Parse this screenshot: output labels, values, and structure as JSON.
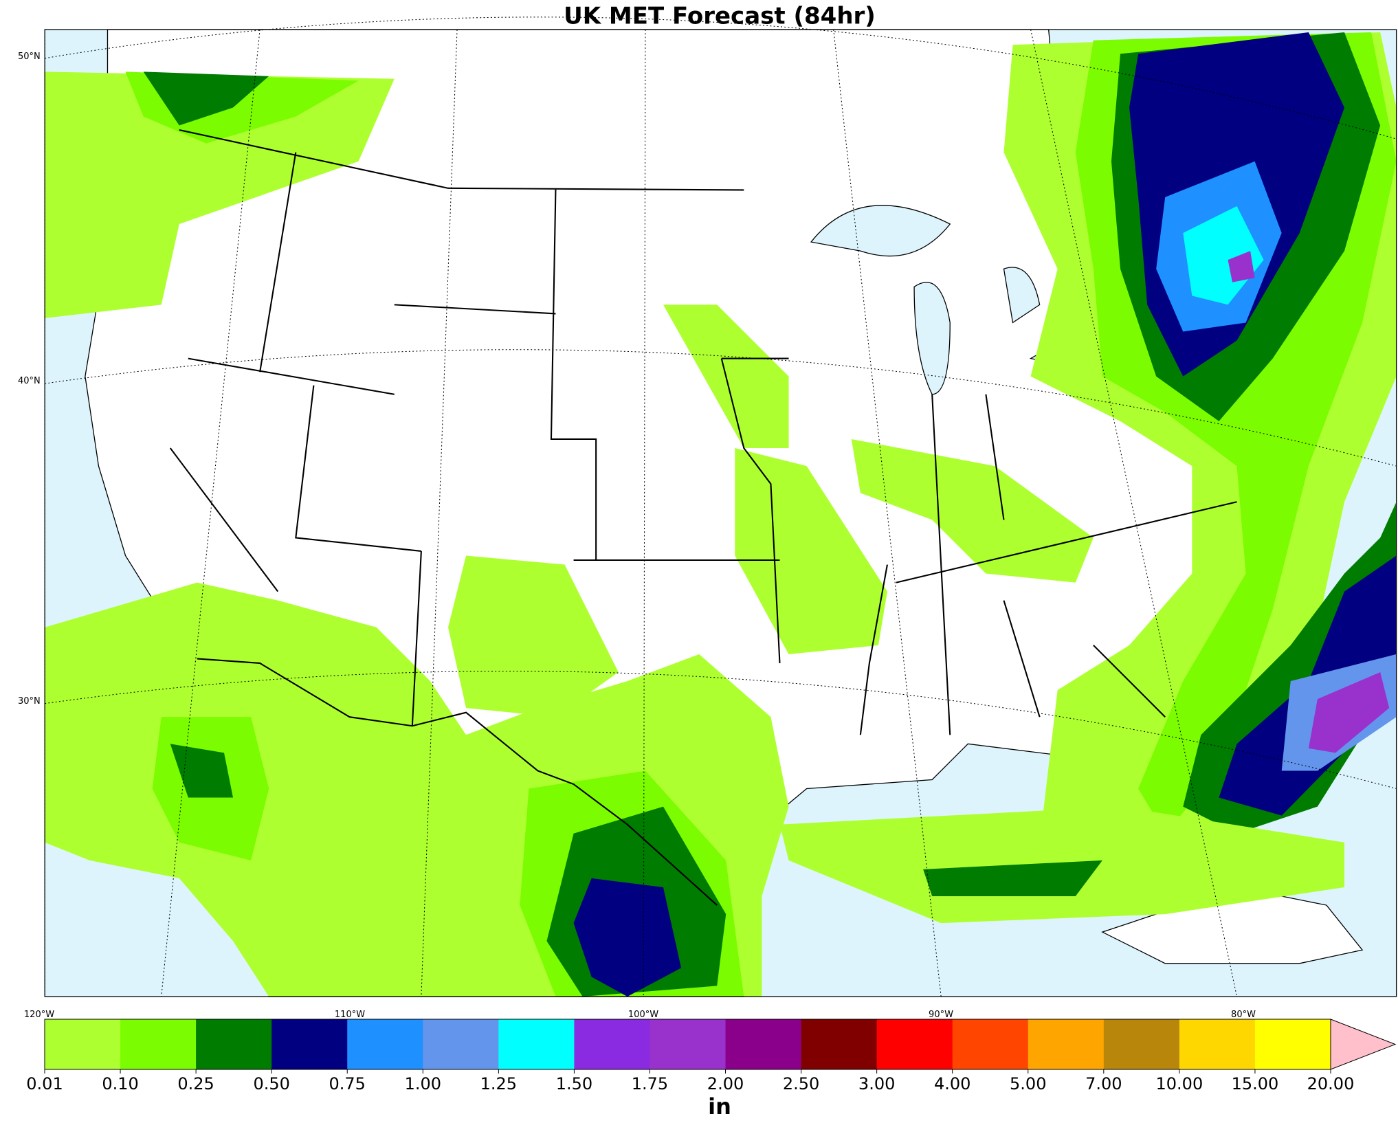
{
  "title": "UK MET Forecast (84hr)",
  "latitude_labels": [
    "50°N",
    "40°N",
    "30°N"
  ],
  "longitude_labels": [
    "120°W",
    "110°W",
    "100°W",
    "90°W",
    "80°W"
  ],
  "colorbar": {
    "unit": "in",
    "ticks": [
      0.01,
      {
        "value": 0.1,
        "label": "0.10"
      },
      0.25,
      {
        "value": 0.5,
        "label": "0.50"
      },
      0.75,
      {
        "value": 1,
        "label": "1.00"
      },
      1.25,
      {
        "value": 1.5,
        "label": "1.50"
      },
      1.75,
      {
        "value": 2,
        "label": "2.00"
      },
      {
        "value": 2.5,
        "label": "2.50"
      },
      {
        "value": 3,
        "label": "3.00"
      },
      {
        "value": 4,
        "label": "4.00"
      },
      {
        "value": 5,
        "label": "5.00"
      },
      {
        "value": 7,
        "label": "7.00"
      },
      {
        "value": 10,
        "label": "10.00"
      },
      {
        "value": 15,
        "label": "15.00"
      },
      {
        "value": 20,
        "label": "20.00"
      }
    ],
    "colors": [
      "#adff2f",
      "#7cfc00",
      "#007c00",
      "#000080",
      "#1e90ff",
      "#6495ed",
      "#00ffff",
      "#8a2be2",
      "#9932cc",
      "#8b008b",
      "#800000",
      "#ff0000",
      "#ff4500",
      "#ffa500",
      "#b8860b",
      "#ffd700",
      "#ffff00"
    ],
    "extend_color": "#ffc0cb"
  }
}
